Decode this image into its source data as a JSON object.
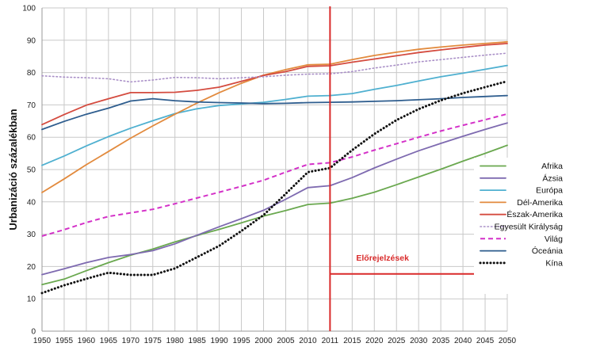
{
  "chart_data": {
    "type": "line",
    "ylabel": "Urbanizáció százalékban",
    "xlabel": "",
    "ylim": [
      0,
      100
    ],
    "yticks": [
      0,
      10,
      20,
      30,
      40,
      50,
      60,
      70,
      80,
      90,
      100
    ],
    "x": [
      1950,
      1955,
      1960,
      1965,
      1970,
      1975,
      1980,
      1985,
      1990,
      1995,
      2000,
      2005,
      2010,
      2011,
      2015,
      2020,
      2025,
      2030,
      2035,
      2040,
      2045,
      2050
    ],
    "xticks": [
      "1950",
      "1955",
      "1960",
      "1965",
      "1970",
      "1975",
      "1980",
      "1985",
      "1990",
      "1995",
      "2000",
      "2005",
      "2010",
      "2011",
      "2015",
      "2020",
      "2025",
      "2030",
      "2035",
      "2040",
      "2045",
      "2050"
    ],
    "grid": true,
    "legend_position": "right",
    "forecast_start": 2011,
    "annotation": "Előrejelzések",
    "annotation_color": "#d92a2a",
    "series": [
      {
        "name": "Afrika",
        "color": "#6aa84f",
        "dash": "solid",
        "values": [
          14.4,
          16.1,
          18.7,
          21.2,
          23.5,
          25.4,
          27.6,
          29.6,
          31.5,
          33.5,
          35.6,
          37.3,
          39.2,
          39.6,
          41.1,
          43.0,
          45.3,
          47.7,
          50.1,
          52.6,
          55.0,
          57.5
        ]
      },
      {
        "name": "Ázsia",
        "color": "#7e6ab0",
        "dash": "solid",
        "values": [
          17.5,
          19.3,
          21.2,
          22.8,
          23.7,
          24.9,
          27.0,
          29.7,
          32.3,
          34.8,
          37.4,
          40.8,
          44.4,
          45.0,
          47.5,
          50.5,
          53.2,
          55.8,
          58.1,
          60.3,
          62.4,
          64.4
        ]
      },
      {
        "name": "Európa",
        "color": "#4fb0d0",
        "dash": "solid",
        "values": [
          51.3,
          54.2,
          57.3,
          60.2,
          62.8,
          65.1,
          67.3,
          68.8,
          69.8,
          70.3,
          70.8,
          71.7,
          72.7,
          72.9,
          73.5,
          74.8,
          76.0,
          77.4,
          78.7,
          79.8,
          81.0,
          82.2
        ]
      },
      {
        "name": "Dél-Amerika",
        "color": "#e28a3d",
        "dash": "solid",
        "values": [
          42.9,
          47.1,
          51.5,
          55.6,
          59.7,
          63.5,
          67.1,
          70.6,
          73.8,
          76.7,
          79.2,
          80.9,
          82.4,
          82.6,
          84.0,
          85.3,
          86.3,
          87.2,
          87.9,
          88.5,
          89.0,
          89.5
        ]
      },
      {
        "name": "Észak-Amerika",
        "color": "#d44b3f",
        "dash": "solid",
        "values": [
          63.9,
          67.0,
          69.9,
          71.9,
          73.8,
          73.8,
          73.9,
          74.5,
          75.5,
          77.3,
          79.1,
          80.3,
          81.9,
          82.1,
          83.2,
          84.2,
          85.2,
          86.2,
          87.0,
          87.8,
          88.5,
          89.0
        ]
      },
      {
        "name": "Egyesült Királyság",
        "color": "#a98fc7",
        "dash": "dotted",
        "values": [
          79.0,
          78.6,
          78.4,
          78.1,
          77.1,
          77.7,
          78.5,
          78.4,
          78.1,
          78.4,
          78.7,
          79.2,
          79.5,
          79.6,
          80.3,
          81.4,
          82.3,
          83.3,
          84.0,
          84.7,
          85.4,
          86.0
        ]
      },
      {
        "name": "Világ",
        "color": "#d431c8",
        "dash": "dashed",
        "values": [
          29.4,
          31.4,
          33.6,
          35.5,
          36.6,
          37.7,
          39.4,
          41.2,
          43.0,
          44.8,
          46.7,
          49.2,
          51.6,
          52.1,
          53.9,
          56.0,
          58.0,
          60.0,
          61.9,
          63.7,
          65.4,
          67.2
        ]
      },
      {
        "name": "Óceánia",
        "color": "#2e5d8e",
        "dash": "solid",
        "values": [
          62.4,
          64.9,
          67.1,
          69.0,
          71.2,
          71.9,
          71.3,
          70.9,
          70.7,
          70.6,
          70.4,
          70.5,
          70.7,
          70.8,
          70.9,
          71.1,
          71.3,
          71.6,
          71.9,
          72.3,
          72.6,
          72.9
        ]
      },
      {
        "name": "Kína",
        "color": "#111111",
        "dash": "dotted-bold",
        "values": [
          11.8,
          14.2,
          16.2,
          18.1,
          17.4,
          17.4,
          19.4,
          22.9,
          26.4,
          31.0,
          35.9,
          42.5,
          49.2,
          50.5,
          56.0,
          61.0,
          65.3,
          68.7,
          71.4,
          73.6,
          75.5,
          77.3
        ]
      }
    ]
  }
}
